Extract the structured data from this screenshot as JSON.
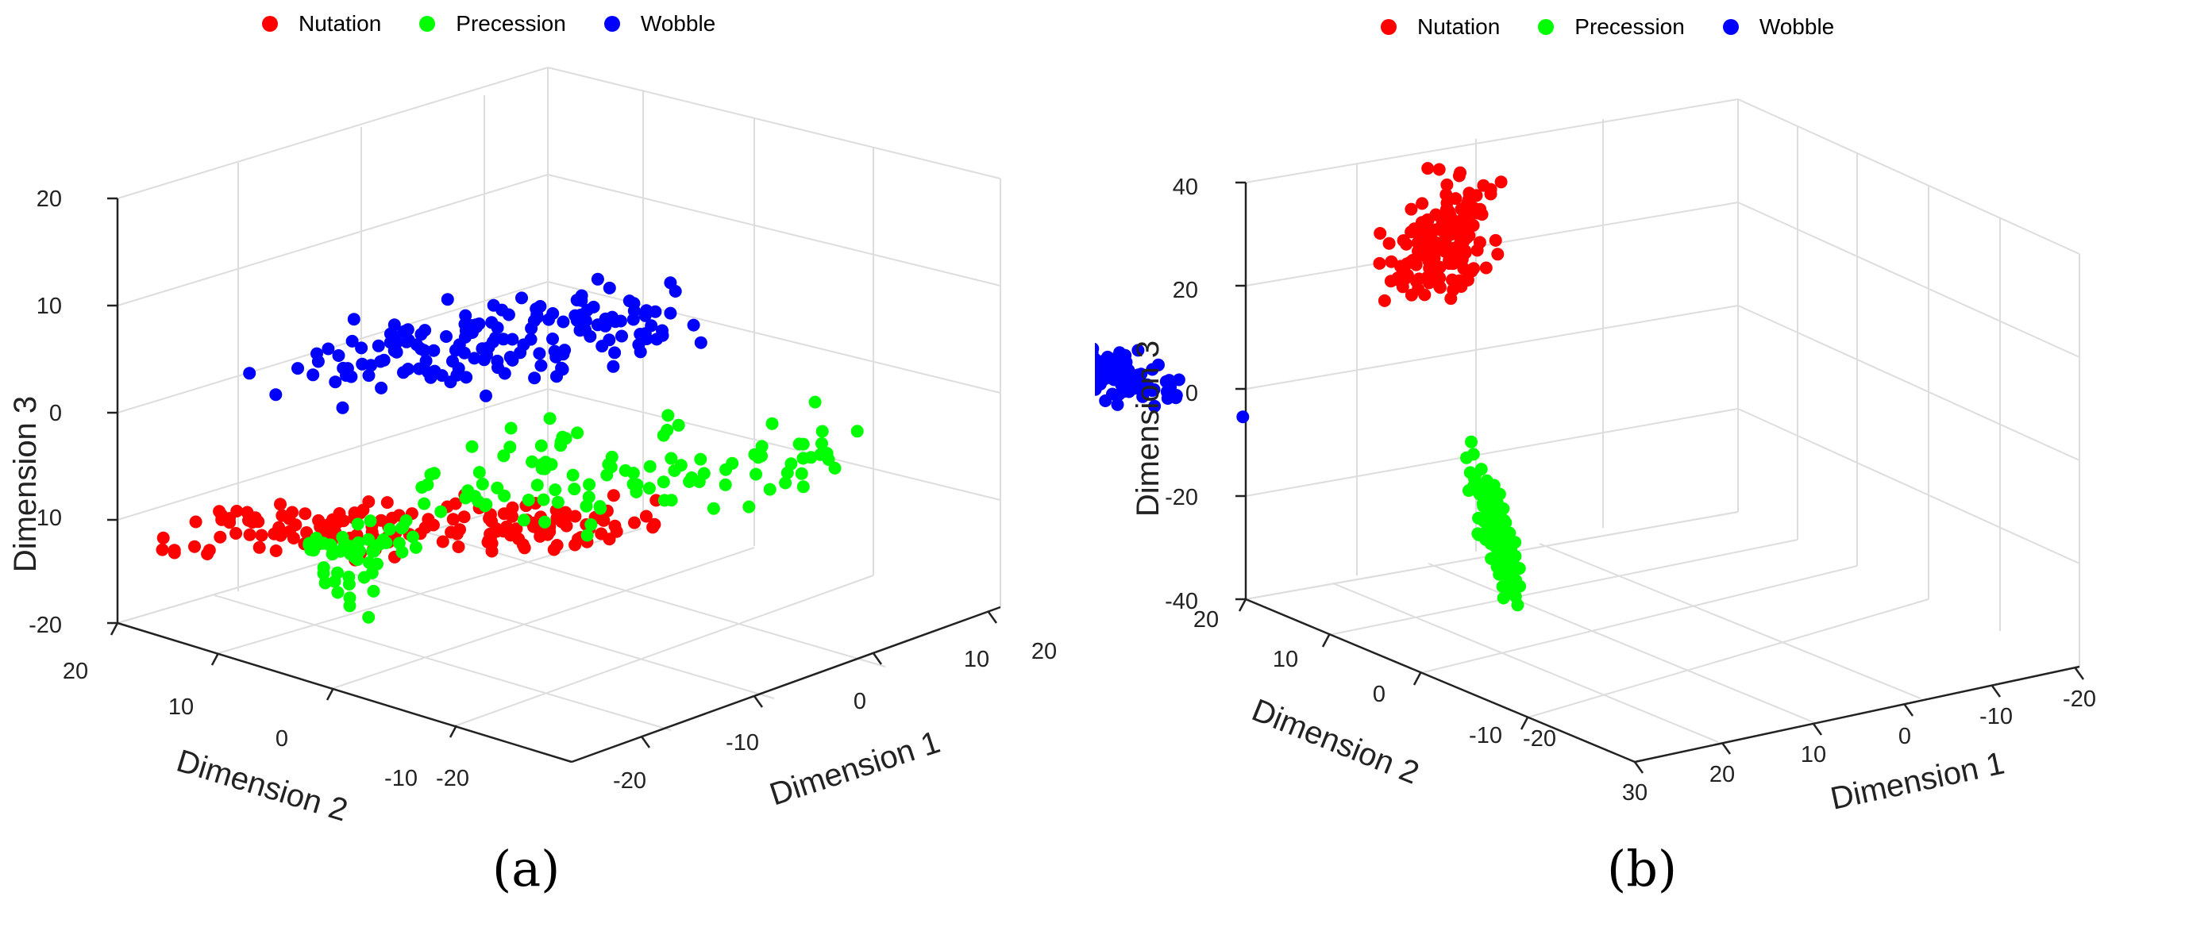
{
  "chart_data": [
    {
      "type": "scatter",
      "panel_label": "(a)",
      "legend_position": "top",
      "legend": [
        "Nutation",
        "Precession",
        "Wobble"
      ],
      "xlabel": "Dimension 1",
      "ylabel": "Dimension 2",
      "zlabel": "Dimension 3",
      "x_ticks": [
        "-20",
        "-10",
        "0",
        "10",
        "20"
      ],
      "y_ticks": [
        "20",
        "10",
        "0",
        "-10",
        "-20"
      ],
      "z_ticks": [
        "-20",
        "-10",
        "0",
        "10",
        "20"
      ],
      "xlim": [
        -25,
        25
      ],
      "ylim": [
        -25,
        25
      ],
      "zlim": [
        -20,
        20
      ],
      "grid": true,
      "series": [
        {
          "name": "Nutation",
          "color": "#ff0000",
          "cx": -2,
          "cy": 5,
          "cz": -8,
          "sx": 8,
          "sy": 5,
          "sz": 2,
          "n": 160
        },
        {
          "name": "Precession",
          "color": "#00ff00",
          "cx": -6,
          "cy": -5,
          "cz": -8,
          "sx": 7,
          "sy": 7,
          "sz": 3,
          "n": 160
        },
        {
          "name": "Wobble",
          "color": "#0000ff",
          "cx": 5,
          "cy": 8,
          "cz": 12,
          "sx": 6,
          "sy": 7,
          "sz": 4,
          "n": 160
        }
      ]
    },
    {
      "type": "scatter",
      "panel_label": "(b)",
      "legend_position": "top",
      "legend": [
        "Nutation",
        "Precession",
        "Wobble"
      ],
      "xlabel": "Dimension 1",
      "ylabel": "Dimension 2",
      "zlabel": "Dimension 3",
      "x_ticks": [
        "30",
        "20",
        "10",
        "0",
        "-10",
        "-20"
      ],
      "y_ticks": [
        "20",
        "10",
        "0",
        "-10",
        "-20"
      ],
      "z_ticks": [
        "-40",
        "-20",
        "0",
        "20",
        "40"
      ],
      "xlim": [
        -25,
        30
      ],
      "ylim": [
        -25,
        25
      ],
      "zlim": [
        -40,
        40
      ],
      "grid": true,
      "series": [
        {
          "name": "Nutation",
          "color": "#ff0000",
          "cx": -5,
          "cy": 15,
          "cz": 28,
          "sx": 3,
          "sy": 3,
          "sz": 5,
          "n": 160
        },
        {
          "name": "Precession",
          "color": "#00ff00",
          "cx": 10,
          "cy": -15,
          "cz": -20,
          "sx": 2,
          "sy": 2,
          "sz": 5,
          "n": 160
        },
        {
          "name": "Wobble",
          "color": "#0000ff",
          "cx": 0,
          "cy": 10,
          "cz": 5,
          "sx": 4,
          "sy": 3,
          "sz": 2,
          "n": 160
        }
      ]
    }
  ]
}
